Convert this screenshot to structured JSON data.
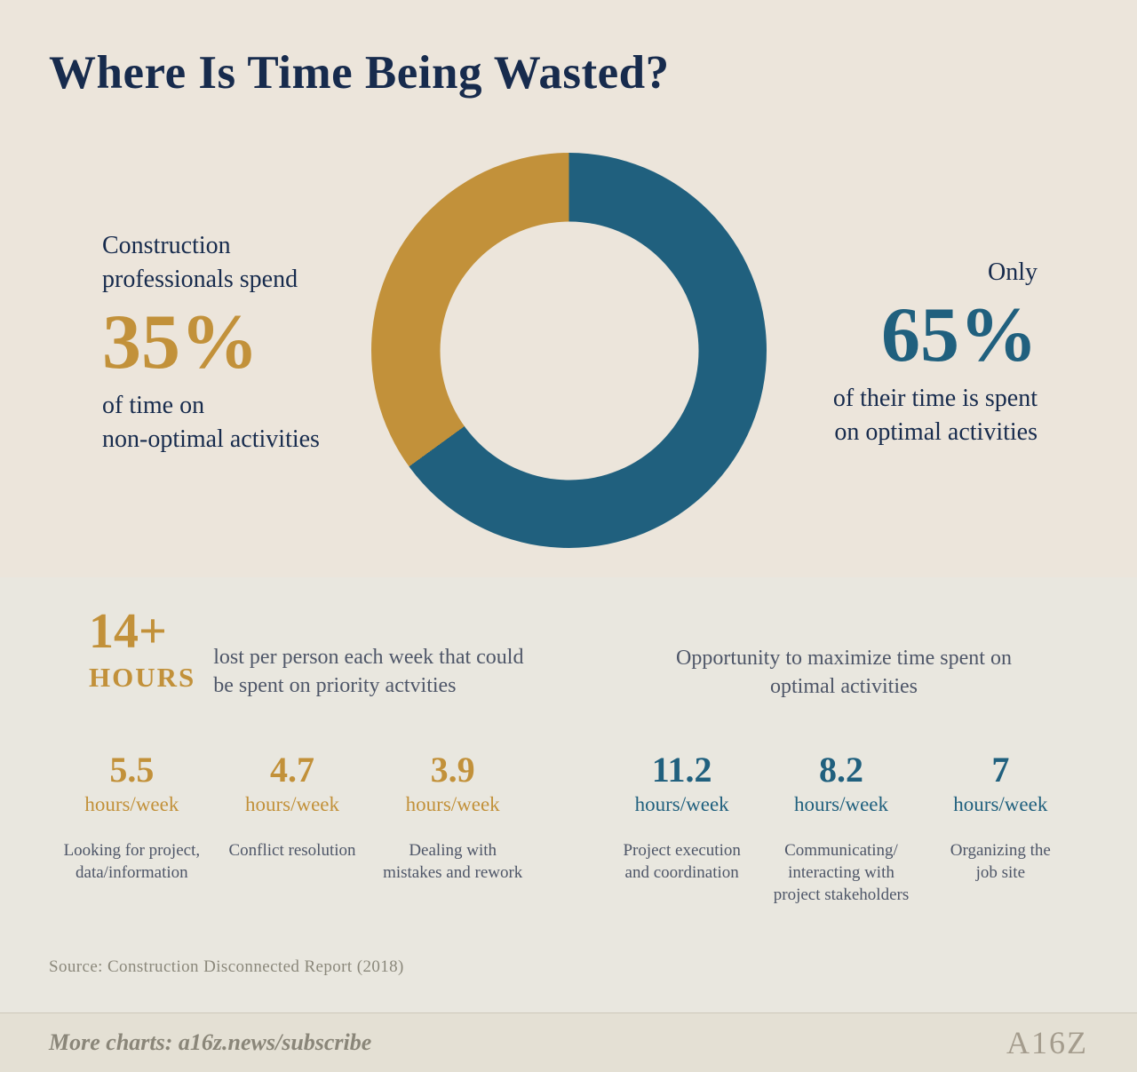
{
  "colors": {
    "gold": "#c2913a",
    "teal": "#20607e",
    "navy": "#172b4d",
    "slate": "#4e5668",
    "muted": "#8b887b",
    "footer_text": "#8a8679",
    "logo": "#a49c8d",
    "bg_top": "#ece5db",
    "bg_bottom": "#e9e7df",
    "bg_footer": "#e4e0d4"
  },
  "title": "Where Is Time Being Wasted?",
  "donut": {
    "left": {
      "lead": "Construction\nprofessionals spend",
      "value": "35%",
      "tail": "of time on\nnon-optimal activities"
    },
    "right": {
      "lead": "Only",
      "value": "65%",
      "tail": "of their time is spent\non optimal activities"
    }
  },
  "chart_data": {
    "type": "pie",
    "donut": true,
    "title": "Where Is Time Being Wasted?",
    "slices": [
      {
        "label": "Time spent on optimal activities",
        "value": 65,
        "color": "#20607e"
      },
      {
        "label": "Time spent on non-optimal activities",
        "value": 35,
        "color": "#c2913a"
      }
    ],
    "annotations": [
      "Construction professionals spend 35% of time on non-optimal activities",
      "Only 65% of their time is spent on optimal activities",
      "14+ HOURS lost per person each week that could be spent on priority actvities",
      "Opportunity to maximize time spent on optimal activities"
    ]
  },
  "wasted": {
    "big_value": "14+",
    "big_unit": "HOURS",
    "desc": "lost per person each week that could\nbe spent on priority actvities",
    "stats": [
      {
        "value": "5.5",
        "unit": "hours/week",
        "label": "Looking for project,\ndata/information"
      },
      {
        "value": "4.7",
        "unit": "hours/week",
        "label": "Conflict resolution"
      },
      {
        "value": "3.9",
        "unit": "hours/week",
        "label": "Dealing with\nmistakes and rework"
      }
    ]
  },
  "opportunity": {
    "heading": "Opportunity to maximize time spent on\noptimal activities",
    "stats": [
      {
        "value": "11.2",
        "unit": "hours/week",
        "label": "Project execution\nand coordination"
      },
      {
        "value": "8.2",
        "unit": "hours/week",
        "label": "Communicating/\ninteracting with\nproject stakeholders"
      },
      {
        "value": "7",
        "unit": "hours/week",
        "label": "Organizing the\njob site"
      }
    ]
  },
  "source": "Source: Construction Disconnected Report (2018)",
  "footer": {
    "more_charts": "More charts: a16z.news/subscribe",
    "logo": "A16Z"
  }
}
